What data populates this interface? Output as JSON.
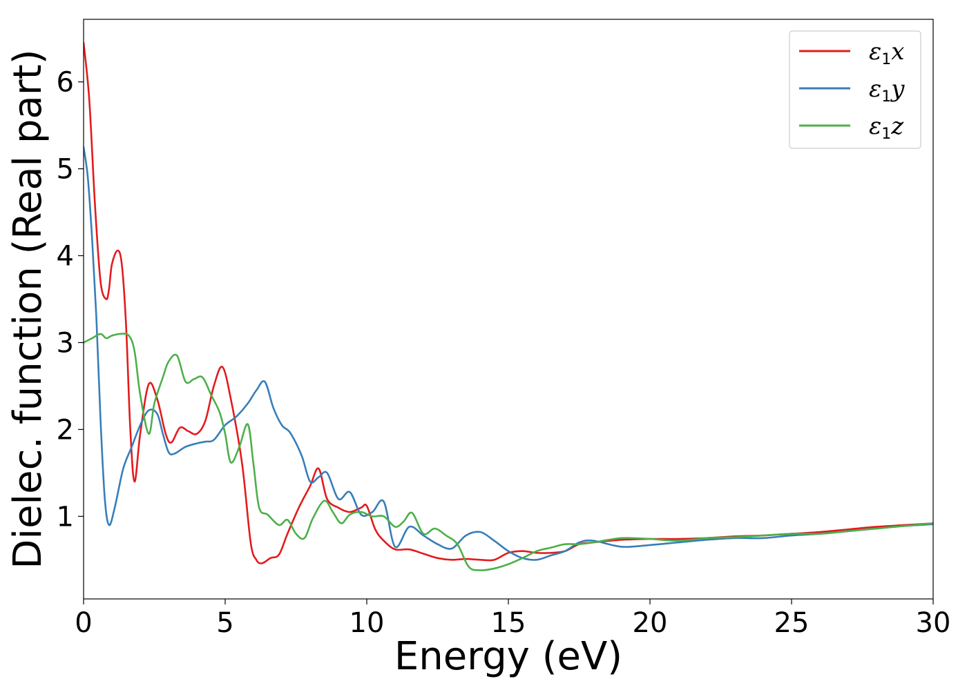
{
  "chart_data": {
    "type": "line",
    "xlabel": "Energy (eV)",
    "ylabel": "Dielec. function (Real part)",
    "xlim": [
      0,
      30
    ],
    "ylim": [
      0.05,
      6.72
    ],
    "xticks": [
      0,
      5,
      10,
      15,
      20,
      25,
      30
    ],
    "yticks": [
      1,
      2,
      3,
      4,
      5,
      6
    ],
    "grid": false,
    "legend_position": "top-right",
    "series": [
      {
        "name": "ε1x",
        "legend_symbol": "ε",
        "legend_sub": "1",
        "legend_var": "x",
        "color": "#e41a1c",
        "x": [
          0,
          0.2,
          0.4,
          0.6,
          0.8,
          0.9,
          1.0,
          1.2,
          1.35,
          1.5,
          1.65,
          1.8,
          2.0,
          2.3,
          2.6,
          2.9,
          3.1,
          3.4,
          3.7,
          4.0,
          4.3,
          4.6,
          4.9,
          5.2,
          5.6,
          5.9,
          6.1,
          6.3,
          6.6,
          6.9,
          7.2,
          7.6,
          8.0,
          8.3,
          8.6,
          9.0,
          9.4,
          9.8,
          10.0,
          10.3,
          10.6,
          11.0,
          11.5,
          12.0,
          12.5,
          13.0,
          13.5,
          14.0,
          14.5,
          15.0,
          15.5,
          16.0,
          16.5,
          17.0,
          17.5,
          18.0,
          19.0,
          20.0,
          21.0,
          22.0,
          23.0,
          24.0,
          25.0,
          26.0,
          27.0,
          28.0,
          29.0,
          30.0
        ],
        "y": [
          6.45,
          5.8,
          4.6,
          3.7,
          3.5,
          3.62,
          3.9,
          4.06,
          3.9,
          3.2,
          2.0,
          1.4,
          1.95,
          2.52,
          2.35,
          1.95,
          1.85,
          2.02,
          1.98,
          1.95,
          2.1,
          2.5,
          2.72,
          2.35,
          1.6,
          0.7,
          0.5,
          0.46,
          0.52,
          0.56,
          0.8,
          1.1,
          1.35,
          1.55,
          1.2,
          1.1,
          1.05,
          1.1,
          1.12,
          0.85,
          0.72,
          0.62,
          0.62,
          0.57,
          0.52,
          0.5,
          0.51,
          0.5,
          0.5,
          0.58,
          0.6,
          0.58,
          0.58,
          0.6,
          0.68,
          0.7,
          0.73,
          0.74,
          0.74,
          0.75,
          0.77,
          0.78,
          0.8,
          0.82,
          0.85,
          0.88,
          0.9,
          0.92
        ]
      },
      {
        "name": "ε1y",
        "legend_symbol": "ε",
        "legend_sub": "1",
        "legend_var": "y",
        "color": "#377eb8",
        "x": [
          0,
          0.15,
          0.3,
          0.45,
          0.6,
          0.75,
          0.9,
          1.1,
          1.4,
          1.7,
          2.0,
          2.3,
          2.6,
          2.8,
          3.0,
          3.2,
          3.6,
          4.0,
          4.3,
          4.6,
          5.0,
          5.4,
          5.8,
          6.1,
          6.4,
          6.7,
          7.0,
          7.3,
          7.7,
          8.0,
          8.3,
          8.6,
          9.0,
          9.4,
          9.8,
          10.2,
          10.6,
          11.0,
          11.5,
          12.0,
          12.5,
          13.0,
          13.5,
          14.0,
          14.5,
          15.0,
          15.5,
          16.0,
          16.5,
          17.0,
          17.5,
          18.0,
          19.0,
          20.0,
          21.0,
          22.0,
          23.0,
          24.0,
          25.0,
          26.0,
          27.0,
          28.0,
          29.0,
          30.0
        ],
        "y": [
          5.25,
          4.9,
          4.2,
          3.3,
          2.1,
          1.2,
          0.9,
          1.1,
          1.55,
          1.8,
          2.05,
          2.22,
          2.18,
          1.95,
          1.74,
          1.72,
          1.8,
          1.84,
          1.86,
          1.88,
          2.05,
          2.15,
          2.3,
          2.45,
          2.55,
          2.25,
          2.05,
          1.96,
          1.7,
          1.4,
          1.45,
          1.5,
          1.2,
          1.28,
          1.02,
          1.05,
          1.17,
          0.65,
          0.88,
          0.78,
          0.68,
          0.63,
          0.78,
          0.82,
          0.72,
          0.6,
          0.52,
          0.5,
          0.55,
          0.6,
          0.7,
          0.72,
          0.65,
          0.67,
          0.7,
          0.73,
          0.75,
          0.75,
          0.78,
          0.8,
          0.83,
          0.86,
          0.89,
          0.91
        ]
      },
      {
        "name": "ε1z",
        "legend_symbol": "ε",
        "legend_sub": "1",
        "legend_var": "z",
        "color": "#4daf4a",
        "x": [
          0,
          0.3,
          0.6,
          0.8,
          1.0,
          1.3,
          1.6,
          1.8,
          2.0,
          2.3,
          2.5,
          2.8,
          3.0,
          3.3,
          3.6,
          3.9,
          4.2,
          4.5,
          4.8,
          5.0,
          5.2,
          5.5,
          5.8,
          6.0,
          6.2,
          6.5,
          6.9,
          7.2,
          7.5,
          7.8,
          8.1,
          8.5,
          8.8,
          9.1,
          9.4,
          9.8,
          10.2,
          10.6,
          11.0,
          11.3,
          11.6,
          12.0,
          12.4,
          12.8,
          13.2,
          13.6,
          14.0,
          14.5,
          15.0,
          15.5,
          16.0,
          16.5,
          17.0,
          17.5,
          18.0,
          19.0,
          20.0,
          21.0,
          22.0,
          23.0,
          24.0,
          25.0,
          26.0,
          27.0,
          28.0,
          29.0,
          30.0
        ],
        "y": [
          3.0,
          3.05,
          3.1,
          3.05,
          3.08,
          3.1,
          3.08,
          2.9,
          2.4,
          1.95,
          2.3,
          2.6,
          2.78,
          2.85,
          2.55,
          2.58,
          2.6,
          2.4,
          2.2,
          1.95,
          1.62,
          1.8,
          2.06,
          1.6,
          1.1,
          1.02,
          0.9,
          0.96,
          0.8,
          0.75,
          0.98,
          1.18,
          1.05,
          0.92,
          1.02,
          1.05,
          1.0,
          1.0,
          0.88,
          0.94,
          1.04,
          0.8,
          0.86,
          0.78,
          0.68,
          0.42,
          0.38,
          0.4,
          0.45,
          0.52,
          0.6,
          0.64,
          0.68,
          0.68,
          0.7,
          0.75,
          0.74,
          0.72,
          0.75,
          0.76,
          0.78,
          0.8,
          0.8,
          0.83,
          0.86,
          0.89,
          0.92
        ]
      }
    ]
  }
}
